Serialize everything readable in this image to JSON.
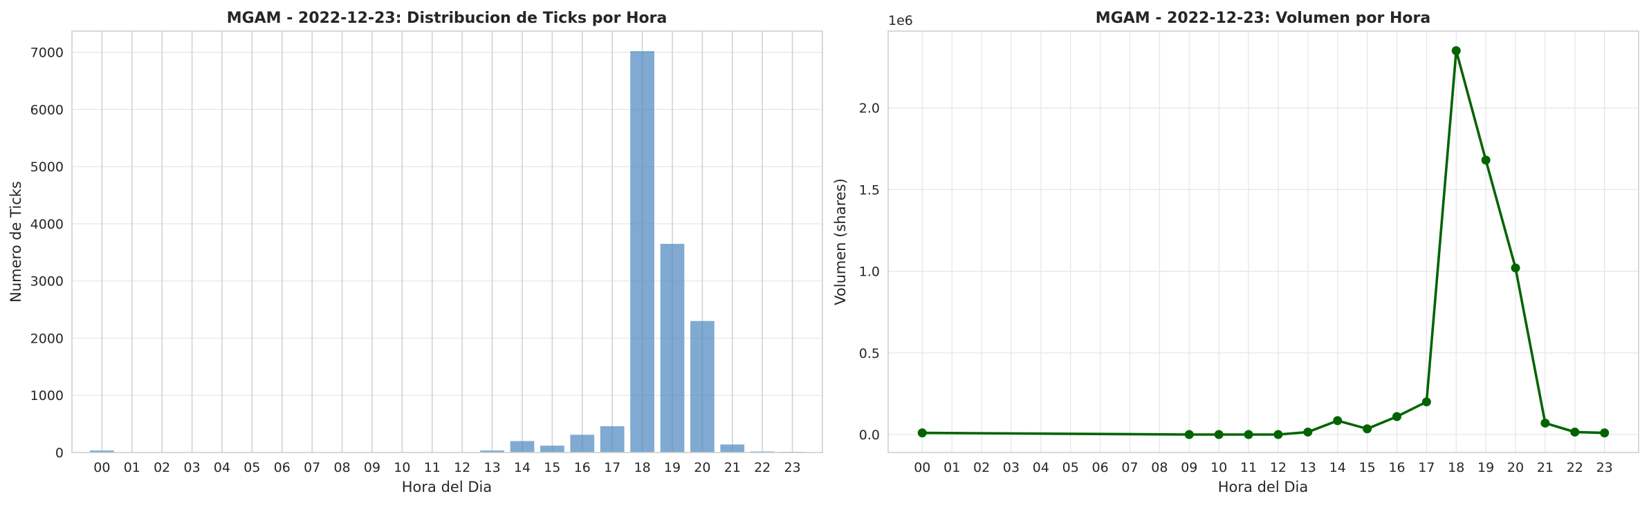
{
  "chart_data": [
    {
      "type": "bar",
      "title": "MGAM - 2022-12-23: Distribucion de Ticks por Hora",
      "xlabel": "Hora del Dia",
      "ylabel": "Numero de Ticks",
      "categories": [
        "00",
        "01",
        "02",
        "03",
        "04",
        "05",
        "06",
        "07",
        "08",
        "09",
        "10",
        "11",
        "12",
        "13",
        "14",
        "15",
        "16",
        "17",
        "18",
        "19",
        "20",
        "21",
        "22",
        "23"
      ],
      "values": [
        35,
        0,
        0,
        0,
        0,
        0,
        0,
        0,
        0,
        0,
        0,
        0,
        0,
        35,
        200,
        120,
        310,
        460,
        7020,
        3650,
        2300,
        140,
        18,
        12
      ],
      "ylim": [
        0,
        7371
      ],
      "yticks": [
        0,
        1000,
        2000,
        3000,
        4000,
        5000,
        6000,
        7000
      ],
      "color": "#4a86bd",
      "grid": true
    },
    {
      "type": "line",
      "title": "MGAM - 2022-12-23: Volumen por Hora",
      "xlabel": "Hora del Dia",
      "ylabel": "Volumen (shares)",
      "y_multiplier_label": "1e6",
      "xticks": [
        "00",
        "01",
        "02",
        "03",
        "04",
        "05",
        "06",
        "07",
        "08",
        "09",
        "10",
        "11",
        "12",
        "13",
        "14",
        "15",
        "16",
        "17",
        "18",
        "19",
        "20",
        "21",
        "22",
        "23"
      ],
      "x": [
        0,
        9,
        10,
        11,
        12,
        13,
        14,
        15,
        16,
        17,
        18,
        19,
        20,
        21,
        22,
        23
      ],
      "y": [
        0.01,
        0.0,
        0.0,
        0.0,
        0.0,
        0.015,
        0.085,
        0.035,
        0.11,
        0.2,
        2.35,
        1.68,
        1.02,
        0.07,
        0.015,
        0.01
      ],
      "ylim": [
        -0.11,
        2.47
      ],
      "yticks": [
        0.0,
        0.5,
        1.0,
        1.5,
        2.0
      ],
      "ytick_labels": [
        "0.0",
        "0.5",
        "1.0",
        "1.5",
        "2.0"
      ],
      "color": "#006400",
      "grid": true
    }
  ]
}
